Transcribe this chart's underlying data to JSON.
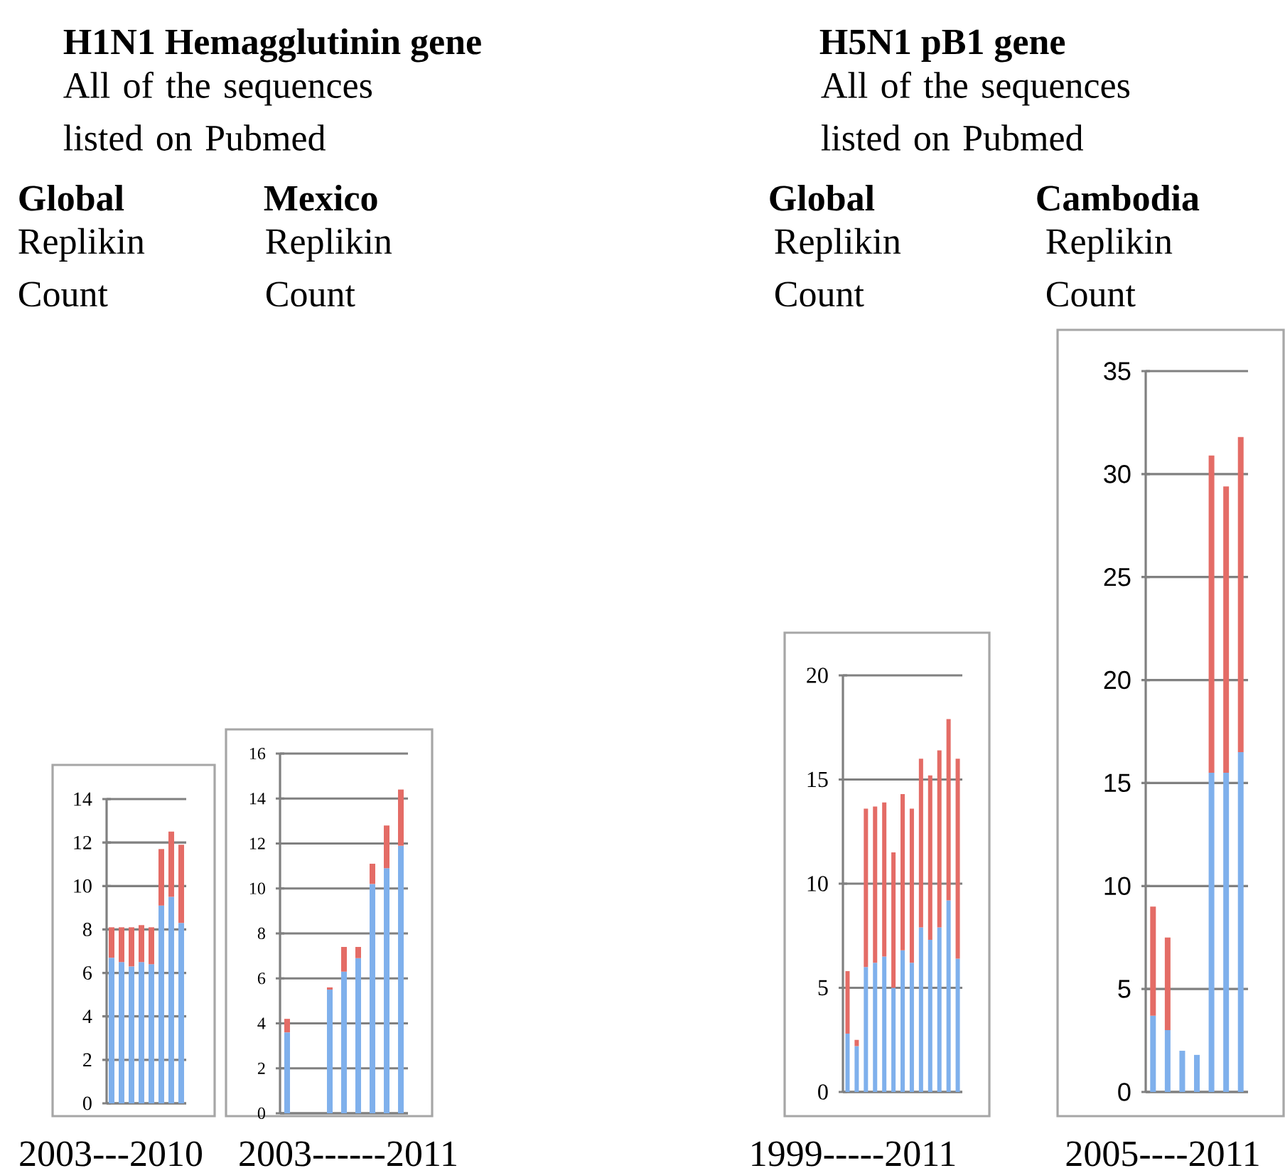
{
  "chart_data": [
    {
      "type": "bar",
      "title": "Global",
      "subtitle": "Replikin Count",
      "xlabel": "2003---2010",
      "annotations": [
        "H1N1 Hemagglutinin gene",
        "All of the sequences listed on Pubmed"
      ],
      "stacked": true,
      "categories": [
        null,
        null,
        null,
        null,
        null,
        null,
        null,
        null
      ],
      "series": [
        {
          "color": "#7fb0ec",
          "values": [
            6.7,
            6.5,
            6.3,
            6.5,
            6.4,
            9.1,
            9.5,
            8.3
          ]
        },
        {
          "color": "#e46c66",
          "values": [
            1.4,
            1.6,
            1.8,
            1.7,
            1.7,
            2.6,
            3.0,
            3.6
          ]
        }
      ],
      "ylim": [
        0,
        14
      ],
      "yticks": [
        0,
        2,
        4,
        6,
        8,
        10,
        12,
        14
      ],
      "grid": "y"
    },
    {
      "type": "bar",
      "title": "Mexico",
      "subtitle": "Replikin Count",
      "xlabel": "2003------2011",
      "stacked": true,
      "categories": [
        null,
        null,
        null,
        null,
        null,
        null,
        null,
        null,
        null
      ],
      "series": [
        {
          "color": "#7fb0ec",
          "values": [
            3.6,
            null,
            null,
            5.5,
            6.3,
            6.9,
            10.2,
            10.9,
            11.9
          ]
        },
        {
          "color": "#e46c66",
          "values": [
            0.6,
            null,
            null,
            0.1,
            1.1,
            0.5,
            0.9,
            1.9,
            2.5
          ]
        }
      ],
      "ylim": [
        0,
        16
      ],
      "yticks": [
        0,
        2,
        4,
        6,
        8,
        10,
        12,
        14,
        16
      ],
      "grid": "y"
    },
    {
      "type": "bar",
      "title": "Global",
      "subtitle": "Replikin Count",
      "xlabel": "1999-----2011",
      "annotations": [
        "H5N1 pB1 gene",
        "All of the sequences listed on Pubmed"
      ],
      "stacked": true,
      "categories": [
        null,
        null,
        null,
        null,
        null,
        null,
        null,
        null,
        null,
        null,
        null,
        null,
        null
      ],
      "series": [
        {
          "color": "#7fb0ec",
          "values": [
            2.8,
            2.2,
            6.0,
            6.2,
            6.5,
            5.0,
            6.8,
            6.2,
            7.9,
            7.3,
            7.9,
            9.2,
            6.4
          ]
        },
        {
          "color": "#e46c66",
          "values": [
            3.0,
            0.3,
            7.6,
            7.5,
            7.4,
            6.5,
            7.5,
            7.4,
            8.1,
            7.9,
            8.5,
            8.7,
            9.6
          ]
        }
      ],
      "ylim": [
        0,
        20
      ],
      "yticks": [
        0,
        5,
        10,
        15,
        20
      ],
      "grid": "y"
    },
    {
      "type": "bar",
      "title": "Cambodia",
      "subtitle": "Replikin Count",
      "xlabel": "2005----2011",
      "stacked": true,
      "categories": [
        null,
        null,
        null,
        null,
        null,
        null,
        null
      ],
      "series": [
        {
          "color": "#7fb0ec",
          "values": [
            3.7,
            3.0,
            2.0,
            1.8,
            15.5,
            15.5,
            16.5
          ]
        },
        {
          "color": "#e46c66",
          "values": [
            5.3,
            4.5,
            null,
            null,
            15.4,
            13.9,
            15.3
          ]
        }
      ],
      "ylim": [
        0,
        35
      ],
      "yticks": [
        0,
        5,
        10,
        15,
        20,
        25,
        30,
        35
      ],
      "grid": "y"
    }
  ]
}
